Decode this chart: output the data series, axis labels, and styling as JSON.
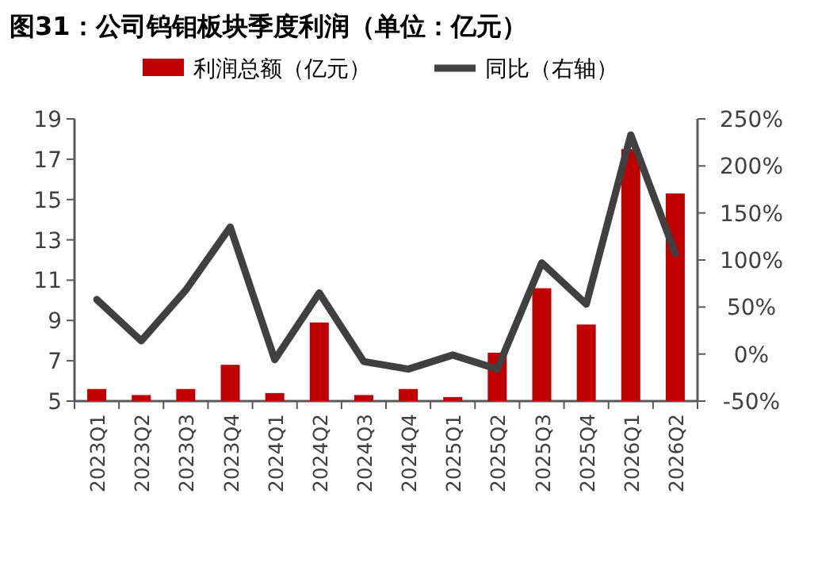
{
  "chart_data": {
    "type": "bar",
    "title": "图31：公司钨钼板块季度利润（单位：亿元）",
    "categories": [
      "2023Q1",
      "2023Q2",
      "2023Q3",
      "2023Q4",
      "2024Q1",
      "2024Q2",
      "2024Q3",
      "2024Q4",
      "2025Q1",
      "2025Q2",
      "2025Q3",
      "2025Q4",
      "2026Q1",
      "2026Q2"
    ],
    "series": [
      {
        "name": "利润总额（亿元）",
        "color": "#c00000",
        "values": [
          5.6,
          5.3,
          5.6,
          6.8,
          5.4,
          8.9,
          5.3,
          5.6,
          5.2,
          7.4,
          10.6,
          8.8,
          17.5,
          15.3
        ]
      },
      {
        "name": "同比（右轴）",
        "type": "line",
        "axis": "y2",
        "color": "#404040",
        "values": [
          58,
          14,
          68,
          135,
          -6,
          65,
          -8,
          -16,
          -1,
          -16,
          97,
          53,
          233,
          107
        ]
      }
    ],
    "ylim": [
      5,
      19
    ],
    "yticks": [
      5,
      7,
      9,
      11,
      13,
      15,
      17,
      19
    ],
    "y2lim": [
      -50,
      250
    ],
    "y2ticks": [
      {
        "value": -50,
        "label": "-50%"
      },
      {
        "value": 0,
        "label": "0%"
      },
      {
        "value": 50,
        "label": "50%"
      },
      {
        "value": 100,
        "label": "100%"
      },
      {
        "value": 150,
        "label": "150%"
      },
      {
        "value": 200,
        "label": "200%"
      },
      {
        "value": 250,
        "label": "250%"
      }
    ],
    "legend": "top",
    "grid": false
  }
}
